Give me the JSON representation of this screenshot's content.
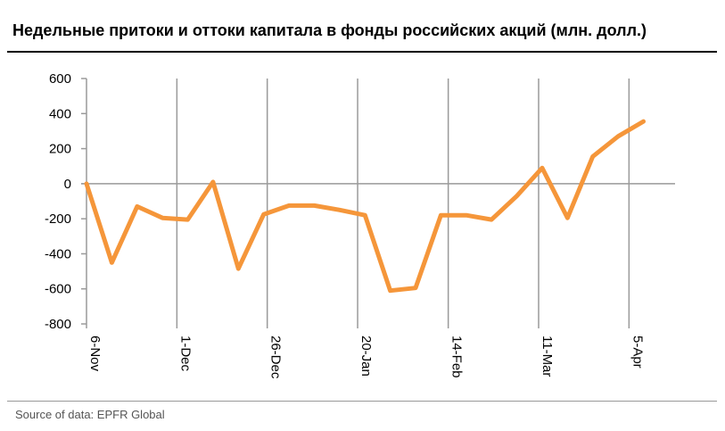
{
  "title": "Недельные притоки и оттоки капитала в фонды российских акций (млн. долл.)",
  "source": "Source of data: EPFR Global",
  "colors": {
    "line": "#F5963A",
    "grid": "#9a9a9a",
    "axis": "#9a9a9a"
  },
  "chart_data": {
    "type": "line",
    "title": "Недельные притоки и оттоки капитала в фонды российских акций (млн. долл.)",
    "xlabel": "",
    "ylabel": "",
    "ylim": [
      -800,
      600
    ],
    "yticks": [
      600,
      400,
      200,
      0,
      -200,
      -400,
      -600,
      -800
    ],
    "x_tick_labels": [
      "6-Nov",
      "1-Dec",
      "26-Dec",
      "20-Jan",
      "14-Feb",
      "11-Mar",
      "5-Apr"
    ],
    "x_tick_label_weeks": [
      0,
      3.57,
      7.14,
      10.71,
      14.29,
      17.86,
      21.43
    ],
    "grid": {
      "vertical": true,
      "horizontal": false
    },
    "series": [
      {
        "values": [
          0,
          -450,
          -130,
          -195,
          -205,
          10,
          -485,
          -175,
          -125,
          -125,
          -150,
          -180,
          -610,
          -595,
          -180,
          -180,
          -205,
          -70,
          90,
          -195,
          155,
          270,
          355
        ]
      }
    ]
  }
}
